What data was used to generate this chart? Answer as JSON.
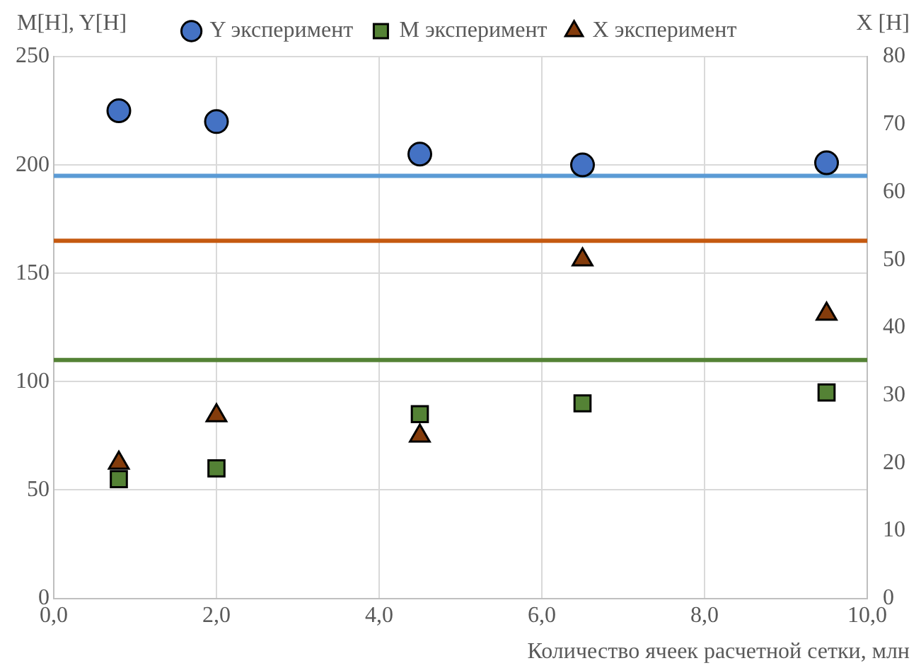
{
  "chart_data": {
    "type": "scatter",
    "xlabel": "Количество ячеек расчетной сетки, млн",
    "ylabel": "M[H], Y[H]",
    "y2label": "X [H]",
    "x": [
      0.8,
      2,
      4.5,
      6.5,
      9.5
    ],
    "series": [
      {
        "name": "Y эксперимент",
        "color": "#4472c4",
        "marker": "circle",
        "values": [
          225,
          220,
          205,
          200,
          201
        ]
      },
      {
        "name": "M эксперимент",
        "color": "#548235",
        "marker": "square",
        "values": [
          55,
          60,
          85,
          90,
          95
        ]
      },
      {
        "name": "X эксперимент",
        "color": "#843c0c",
        "marker": "triangle",
        "axis": "y2",
        "values": [
          20,
          27,
          24,
          50,
          42
        ]
      }
    ],
    "ref_lines": [
      {
        "axis": "y",
        "value": 195,
        "color": "#5b9bd5"
      },
      {
        "axis": "y",
        "value": 165,
        "color": "#c55a11"
      },
      {
        "axis": "y",
        "value": 110,
        "color": "#548235"
      }
    ],
    "xlim": [
      0,
      10
    ],
    "xticks": [
      {
        "value": 0,
        "label": "0,0"
      },
      {
        "value": 2,
        "label": "2,0"
      },
      {
        "value": 4,
        "label": "4,0"
      },
      {
        "value": 6,
        "label": "6,0"
      },
      {
        "value": 8,
        "label": "8,0"
      },
      {
        "value": 10,
        "label": "10,0"
      }
    ],
    "ylim": [
      0,
      250
    ],
    "yticks": [
      0,
      50,
      100,
      150,
      200,
      250
    ],
    "y2lim": [
      0,
      80
    ],
    "y2ticks": [
      0,
      10,
      20,
      30,
      40,
      50,
      60,
      70,
      80
    ],
    "grid": true,
    "legend": "top"
  }
}
